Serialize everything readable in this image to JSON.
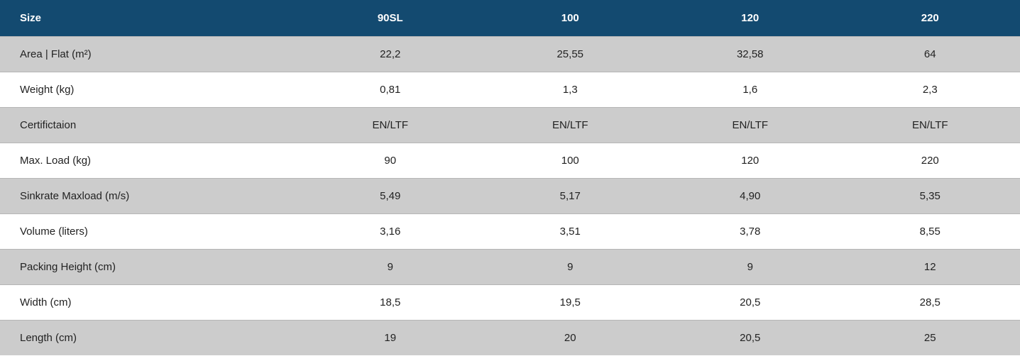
{
  "table": {
    "header": [
      "Size",
      "90SL",
      "100",
      "120",
      "220"
    ],
    "rows": [
      [
        "Area | Flat (m²)",
        "22,2",
        "25,55",
        "32,58",
        "64"
      ],
      [
        "Weight (kg)",
        "0,81",
        "1,3",
        "1,6",
        "2,3"
      ],
      [
        "Certifictaion",
        "EN/LTF",
        "EN/LTF",
        "EN/LTF",
        "EN/LTF"
      ],
      [
        "Max. Load (kg)",
        "90",
        "100",
        "120",
        "220"
      ],
      [
        "Sinkrate Maxload (m/s)",
        "5,49",
        "5,17",
        "4,90",
        "5,35"
      ],
      [
        "Volume (liters)",
        "3,16",
        "3,51",
        "3,78",
        "8,55"
      ],
      [
        "Packing Height (cm)",
        "9",
        "9",
        "9",
        "12"
      ],
      [
        "Width (cm)",
        "18,5",
        "19,5",
        "20,5",
        "28,5"
      ],
      [
        "Length (cm)",
        "19",
        "20",
        "20,5",
        "25"
      ]
    ]
  }
}
